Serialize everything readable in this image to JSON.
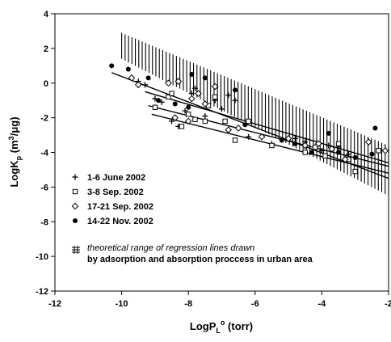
{
  "chart_data": {
    "type": "scatter",
    "xlabel": "LogP",
    "xlabel_sub": "L",
    "xlabel_sup": "o",
    "xlabel_unit": "(torr)",
    "ylabel": "LogK",
    "ylabel_sub": "p",
    "ylabel_unit_pre": "(m",
    "ylabel_unit_sup": "3",
    "ylabel_unit_post": "/μg)",
    "xlim": [
      -12,
      -2
    ],
    "ylim": [
      -12,
      4
    ],
    "xticks": [
      -12,
      -10,
      -8,
      -6,
      -4,
      -2
    ],
    "yticks": [
      -12,
      -10,
      -8,
      -6,
      -4,
      -2,
      0,
      2,
      4
    ],
    "xtick_labels": [
      "-12",
      "-10",
      "-8",
      "-6",
      "-4",
      "-2"
    ],
    "ytick_labels": [
      "-12",
      "-10",
      "-8",
      "-6",
      "-4",
      "-2",
      "0",
      "2",
      "4"
    ],
    "legend_position": "lower-left",
    "series": [
      {
        "name": "1-6 June 2002",
        "marker": "plus",
        "points": [
          [
            -9.0,
            -0.9
          ],
          [
            -8.8,
            -1.1
          ],
          [
            -8.5,
            -2.2
          ],
          [
            -8.3,
            -2.5
          ],
          [
            -8.1,
            -1.6
          ],
          [
            -7.9,
            -0.6
          ],
          [
            -7.8,
            -0.3
          ],
          [
            -7.5,
            -1.9
          ],
          [
            -7.2,
            -1.0
          ],
          [
            -7.0,
            -1.5
          ],
          [
            -6.8,
            -0.7
          ],
          [
            -6.6,
            -1.0
          ],
          [
            -6.2,
            -3.1
          ],
          [
            -5.5,
            -3.5
          ],
          [
            -4.8,
            -3.2
          ],
          [
            -4.5,
            -3.4
          ],
          [
            -4.2,
            -3.7
          ],
          [
            -4.0,
            -3.9
          ],
          [
            -3.8,
            -3.6
          ],
          [
            -3.5,
            -3.7
          ],
          [
            -3.2,
            -4.1
          ],
          [
            -9.5,
            0.1
          ],
          [
            -9.3,
            -0.1
          ]
        ],
        "line": [
          [
            -9.3,
            -0.5
          ],
          [
            -2.0,
            -4.6
          ]
        ]
      },
      {
        "name": "3-8 Sep. 2002",
        "marker": "square",
        "points": [
          [
            -9.0,
            -1.4
          ],
          [
            -8.6,
            -0.8
          ],
          [
            -8.2,
            -2.5
          ],
          [
            -8.0,
            -1.8
          ],
          [
            -7.8,
            -2.1
          ],
          [
            -7.5,
            -2.2
          ],
          [
            -7.4,
            -1.3
          ],
          [
            -7.2,
            -0.8
          ],
          [
            -6.9,
            -2.2
          ],
          [
            -6.6,
            -3.3
          ],
          [
            -6.2,
            -2.2
          ],
          [
            -5.5,
            -3.6
          ],
          [
            -4.5,
            -4.0
          ],
          [
            -4.2,
            -3.7
          ],
          [
            -3.9,
            -4.2
          ],
          [
            -3.5,
            -3.5
          ],
          [
            -3.2,
            -4.4
          ],
          [
            -3.0,
            -5.1
          ],
          [
            -2.3,
            -3.9
          ],
          [
            -8.5,
            -0.6
          ]
        ],
        "line": [
          [
            -9.2,
            -1.3
          ],
          [
            -2.0,
            -4.8
          ]
        ]
      },
      {
        "name": "17-21 Sep. 2002",
        "marker": "diamond",
        "points": [
          [
            -9.7,
            0.3
          ],
          [
            -9.5,
            -0.1
          ],
          [
            -8.6,
            0.0
          ],
          [
            -8.4,
            -2.0
          ],
          [
            -8.0,
            -2.2
          ],
          [
            -7.9,
            -0.9
          ],
          [
            -7.7,
            -0.6
          ],
          [
            -7.5,
            -1.2
          ],
          [
            -7.2,
            -0.2
          ],
          [
            -6.8,
            -2.7
          ],
          [
            -6.5,
            -2.6
          ],
          [
            -5.8,
            -3.1
          ],
          [
            -5.0,
            -3.2
          ],
          [
            -4.5,
            -3.6
          ],
          [
            -4.1,
            -3.5
          ],
          [
            -3.7,
            -3.8
          ],
          [
            -3.3,
            -4.4
          ],
          [
            -2.6,
            -3.4
          ],
          [
            -2.1,
            -3.9
          ],
          [
            -8.3,
            0.1
          ]
        ],
        "line": [
          [
            -9.1,
            -1.8
          ],
          [
            -2.0,
            -5.2
          ]
        ]
      },
      {
        "name": "14-22 Nov. 2002",
        "marker": "circle",
        "points": [
          [
            -10.3,
            1.0
          ],
          [
            -9.8,
            0.8
          ],
          [
            -9.2,
            0.3
          ],
          [
            -8.9,
            -1.0
          ],
          [
            -8.4,
            -1.2
          ],
          [
            -7.9,
            0.5
          ],
          [
            -7.5,
            0.3
          ],
          [
            -6.6,
            -0.4
          ],
          [
            -6.3,
            -2.4
          ],
          [
            -5.2,
            -3.3
          ],
          [
            -4.8,
            -3.5
          ],
          [
            -4.3,
            -4.0
          ],
          [
            -3.8,
            -2.9
          ],
          [
            -3.5,
            -4.0
          ],
          [
            -3.0,
            -4.3
          ],
          [
            -2.5,
            -4.1
          ],
          [
            -2.4,
            -2.6
          ],
          [
            -8.0,
            -1.4
          ]
        ],
        "line": [
          [
            -10.3,
            0.6
          ],
          [
            -2.0,
            -5.5
          ]
        ]
      }
    ],
    "band": {
      "upper": [
        [
          -10.0,
          2.9
        ],
        [
          -2.0,
          -3.6
        ]
      ],
      "lower": [
        [
          -10.0,
          1.4
        ],
        [
          -2.0,
          -6.5
        ]
      ]
    },
    "annotation_line1": "theoretical range of regression lines drawn",
    "annotation_line2": "by adsorption and absorption proccess in urban area"
  }
}
